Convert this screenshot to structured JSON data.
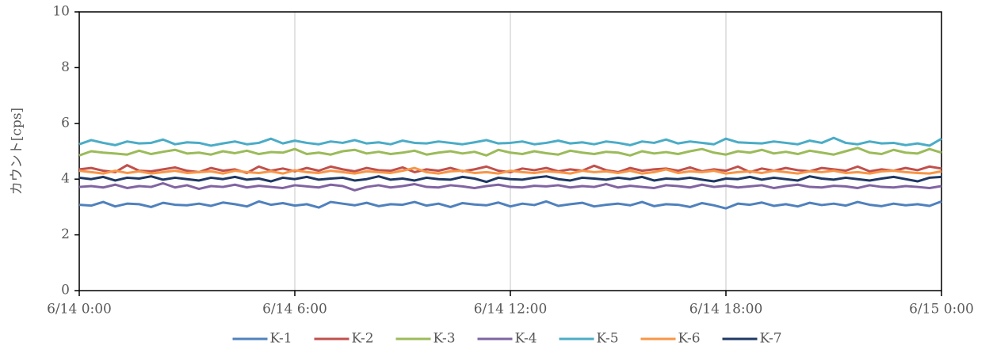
{
  "chart_data": {
    "type": "line",
    "ylabel": "カウント[cps]",
    "ylim": [
      0,
      10
    ],
    "yticks": [
      0,
      2,
      4,
      6,
      8,
      10
    ],
    "xlim": [
      "6/14 0:00",
      "6/15 0:00"
    ],
    "xticks": [
      "6/14 0:00",
      "6/14 6:00",
      "6/14 12:00",
      "6/14 18:00",
      "6/15 0:00"
    ],
    "grid": "x",
    "legend": "bottom",
    "x": [
      "6/14 0:00",
      "6/14 0:20",
      "6/14 0:40",
      "6/14 1:00",
      "6/14 1:20",
      "6/14 1:40",
      "6/14 2:00",
      "6/14 2:20",
      "6/14 2:40",
      "6/14 3:00",
      "6/14 3:20",
      "6/14 3:40",
      "6/14 4:00",
      "6/14 4:20",
      "6/14 4:40",
      "6/14 5:00",
      "6/14 5:20",
      "6/14 5:40",
      "6/14 6:00",
      "6/14 6:20",
      "6/14 6:40",
      "6/14 7:00",
      "6/14 7:20",
      "6/14 7:40",
      "6/14 8:00",
      "6/14 8:20",
      "6/14 8:40",
      "6/14 9:00",
      "6/14 9:20",
      "6/14 9:40",
      "6/14 10:00",
      "6/14 10:20",
      "6/14 10:40",
      "6/14 11:00",
      "6/14 11:20",
      "6/14 11:40",
      "6/14 12:00",
      "6/14 12:20",
      "6/14 12:40",
      "6/14 13:00",
      "6/14 13:20",
      "6/14 13:40",
      "6/14 14:00",
      "6/14 14:20",
      "6/14 14:40",
      "6/14 15:00",
      "6/14 15:20",
      "6/14 15:40",
      "6/14 16:00",
      "6/14 16:20",
      "6/14 16:40",
      "6/14 17:00",
      "6/14 17:20",
      "6/14 17:40",
      "6/14 18:00",
      "6/14 18:20",
      "6/14 18:40",
      "6/14 19:00",
      "6/14 19:20",
      "6/14 19:40",
      "6/14 20:00",
      "6/14 20:20",
      "6/14 20:40",
      "6/14 21:00",
      "6/14 21:20",
      "6/14 21:40",
      "6/14 22:00",
      "6/14 22:20",
      "6/14 22:40",
      "6/14 23:00",
      "6/14 23:20",
      "6/14 23:40",
      "6/15 0:00"
    ],
    "series": [
      {
        "name": "K-1",
        "color": "#4f81bd",
        "values": [
          3.08,
          3.05,
          3.18,
          3.02,
          3.12,
          3.1,
          3.0,
          3.15,
          3.08,
          3.06,
          3.12,
          3.04,
          3.16,
          3.1,
          3.02,
          3.2,
          3.08,
          3.14,
          3.05,
          3.1,
          2.98,
          3.18,
          3.12,
          3.06,
          3.15,
          3.03,
          3.1,
          3.08,
          3.18,
          3.05,
          3.12,
          3.0,
          3.14,
          3.09,
          3.06,
          3.16,
          3.02,
          3.12,
          3.07,
          3.2,
          3.04,
          3.1,
          3.15,
          3.02,
          3.08,
          3.12,
          3.06,
          3.18,
          3.03,
          3.1,
          3.08,
          3.0,
          3.14,
          3.06,
          2.95,
          3.12,
          3.08,
          3.16,
          3.04,
          3.1,
          3.02,
          3.15,
          3.07,
          3.12,
          3.05,
          3.18,
          3.08,
          3.03,
          3.12,
          3.06,
          3.1,
          3.04,
          3.2
        ]
      },
      {
        "name": "K-2",
        "color": "#c0504d",
        "values": [
          4.35,
          4.4,
          4.3,
          4.25,
          4.5,
          4.3,
          4.28,
          4.35,
          4.42,
          4.3,
          4.25,
          4.4,
          4.3,
          4.35,
          4.22,
          4.45,
          4.3,
          4.38,
          4.28,
          4.4,
          4.3,
          4.45,
          4.35,
          4.28,
          4.4,
          4.32,
          4.3,
          4.42,
          4.25,
          4.35,
          4.3,
          4.4,
          4.28,
          4.35,
          4.45,
          4.3,
          4.25,
          4.38,
          4.32,
          4.4,
          4.28,
          4.35,
          4.3,
          4.48,
          4.32,
          4.25,
          4.4,
          4.3,
          4.35,
          4.38,
          4.3,
          4.42,
          4.28,
          4.35,
          4.3,
          4.45,
          4.25,
          4.38,
          4.3,
          4.4,
          4.32,
          4.28,
          4.4,
          4.35,
          4.3,
          4.45,
          4.28,
          4.35,
          4.3,
          4.4,
          4.32,
          4.45,
          4.38
        ]
      },
      {
        "name": "K-3",
        "color": "#9bbb59",
        "values": [
          4.85,
          5.0,
          4.95,
          4.92,
          4.88,
          5.02,
          4.9,
          4.98,
          5.05,
          4.92,
          4.95,
          4.88,
          5.0,
          4.93,
          5.02,
          4.9,
          4.97,
          4.95,
          5.08,
          4.9,
          4.95,
          4.88,
          5.0,
          5.05,
          4.92,
          4.98,
          4.9,
          4.95,
          5.02,
          4.88,
          4.95,
          5.0,
          4.92,
          4.98,
          4.85,
          5.05,
          4.95,
          4.9,
          5.0,
          4.93,
          4.88,
          5.02,
          4.95,
          4.9,
          4.98,
          4.95,
          4.85,
          5.0,
          4.92,
          4.97,
          4.9,
          5.0,
          5.08,
          4.95,
          4.88,
          5.0,
          4.95,
          5.05,
          4.92,
          4.98,
          4.9,
          5.02,
          4.95,
          4.88,
          5.0,
          5.12,
          4.95,
          4.9,
          5.05,
          4.95,
          4.92,
          5.08,
          4.95
        ]
      },
      {
        "name": "K-4",
        "color": "#8064a2",
        "values": [
          3.72,
          3.75,
          3.7,
          3.8,
          3.68,
          3.75,
          3.72,
          3.85,
          3.7,
          3.78,
          3.65,
          3.75,
          3.72,
          3.8,
          3.7,
          3.76,
          3.72,
          3.68,
          3.78,
          3.74,
          3.7,
          3.8,
          3.75,
          3.6,
          3.72,
          3.78,
          3.7,
          3.75,
          3.82,
          3.72,
          3.7,
          3.78,
          3.74,
          3.68,
          3.75,
          3.8,
          3.72,
          3.7,
          3.76,
          3.74,
          3.78,
          3.7,
          3.75,
          3.72,
          3.82,
          3.7,
          3.76,
          3.72,
          3.68,
          3.78,
          3.75,
          3.7,
          3.8,
          3.72,
          3.76,
          3.7,
          3.74,
          3.78,
          3.68,
          3.75,
          3.8,
          3.72,
          3.7,
          3.76,
          3.74,
          3.68,
          3.78,
          3.72,
          3.7,
          3.75,
          3.72,
          3.68,
          3.75
        ]
      },
      {
        "name": "K-5",
        "color": "#4bacc6",
        "values": [
          5.25,
          5.4,
          5.3,
          5.22,
          5.35,
          5.28,
          5.3,
          5.42,
          5.25,
          5.32,
          5.3,
          5.2,
          5.28,
          5.35,
          5.25,
          5.3,
          5.45,
          5.28,
          5.38,
          5.3,
          5.25,
          5.35,
          5.3,
          5.4,
          5.28,
          5.32,
          5.25,
          5.38,
          5.3,
          5.28,
          5.35,
          5.3,
          5.25,
          5.32,
          5.4,
          5.28,
          5.3,
          5.35,
          5.25,
          5.3,
          5.38,
          5.28,
          5.32,
          5.25,
          5.35,
          5.3,
          5.22,
          5.35,
          5.3,
          5.42,
          5.28,
          5.35,
          5.3,
          5.25,
          5.45,
          5.32,
          5.3,
          5.28,
          5.35,
          5.3,
          5.25,
          5.38,
          5.3,
          5.48,
          5.3,
          5.25,
          5.35,
          5.28,
          5.3,
          5.22,
          5.28,
          5.2,
          5.45
        ]
      },
      {
        "name": "K-6",
        "color": "#f79646",
        "values": [
          4.3,
          4.25,
          4.2,
          4.3,
          4.22,
          4.28,
          4.2,
          4.25,
          4.3,
          4.22,
          4.25,
          4.28,
          4.2,
          4.3,
          4.25,
          4.22,
          4.28,
          4.2,
          4.32,
          4.25,
          4.22,
          4.3,
          4.25,
          4.2,
          4.28,
          4.25,
          4.22,
          4.3,
          4.4,
          4.25,
          4.2,
          4.28,
          4.3,
          4.22,
          4.25,
          4.2,
          4.3,
          4.25,
          4.22,
          4.28,
          4.25,
          4.2,
          4.3,
          4.25,
          4.28,
          4.22,
          4.3,
          4.2,
          4.25,
          4.35,
          4.22,
          4.28,
          4.25,
          4.3,
          4.2,
          4.25,
          4.28,
          4.22,
          4.3,
          4.25,
          4.2,
          4.28,
          4.25,
          4.3,
          4.22,
          4.25,
          4.2,
          4.28,
          4.3,
          4.25,
          4.22,
          4.2,
          4.28
        ]
      },
      {
        "name": "K-7",
        "color": "#1f3864",
        "values": [
          4.05,
          4.0,
          4.08,
          3.95,
          4.05,
          4.02,
          4.1,
          3.98,
          4.05,
          4.0,
          3.95,
          4.05,
          4.0,
          4.08,
          3.98,
          4.02,
          3.92,
          4.05,
          4.0,
          4.08,
          3.98,
          4.02,
          4.05,
          3.95,
          4.0,
          4.1,
          3.98,
          4.02,
          3.95,
          4.05,
          4.0,
          3.98,
          4.08,
          4.02,
          3.9,
          4.05,
          4.0,
          3.98,
          4.05,
          4.1,
          4.0,
          3.95,
          4.05,
          4.02,
          3.98,
          4.05,
          4.0,
          4.08,
          3.95,
          4.02,
          4.0,
          4.05,
          3.98,
          3.92,
          4.02,
          4.0,
          4.08,
          3.98,
          4.05,
          4.0,
          3.95,
          4.1,
          4.02,
          3.98,
          4.05,
          4.0,
          3.95,
          4.02,
          4.08,
          4.0,
          3.92,
          4.05,
          4.08
        ]
      }
    ]
  }
}
